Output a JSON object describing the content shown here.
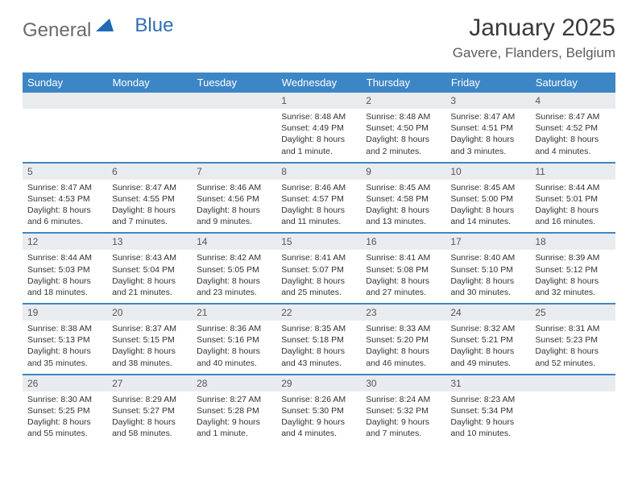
{
  "brand": {
    "general": "General",
    "blue": "Blue"
  },
  "colors": {
    "header_bg": "#3d86c6",
    "header_text": "#ffffff",
    "daynum_bg": "#e9ecef",
    "border": "#3d86c6",
    "text": "#333333",
    "logo_tri": "#1f6bb5"
  },
  "title": {
    "month": "January 2025",
    "location": "Gavere, Flanders, Belgium"
  },
  "weekdays": [
    "Sunday",
    "Monday",
    "Tuesday",
    "Wednesday",
    "Thursday",
    "Friday",
    "Saturday"
  ],
  "weeks": [
    [
      {
        "n": "",
        "sr": "",
        "ss": "",
        "dl": ""
      },
      {
        "n": "",
        "sr": "",
        "ss": "",
        "dl": ""
      },
      {
        "n": "",
        "sr": "",
        "ss": "",
        "dl": ""
      },
      {
        "n": "1",
        "sr": "Sunrise: 8:48 AM",
        "ss": "Sunset: 4:49 PM",
        "dl": "Daylight: 8 hours and 1 minute."
      },
      {
        "n": "2",
        "sr": "Sunrise: 8:48 AM",
        "ss": "Sunset: 4:50 PM",
        "dl": "Daylight: 8 hours and 2 minutes."
      },
      {
        "n": "3",
        "sr": "Sunrise: 8:47 AM",
        "ss": "Sunset: 4:51 PM",
        "dl": "Daylight: 8 hours and 3 minutes."
      },
      {
        "n": "4",
        "sr": "Sunrise: 8:47 AM",
        "ss": "Sunset: 4:52 PM",
        "dl": "Daylight: 8 hours and 4 minutes."
      }
    ],
    [
      {
        "n": "5",
        "sr": "Sunrise: 8:47 AM",
        "ss": "Sunset: 4:53 PM",
        "dl": "Daylight: 8 hours and 6 minutes."
      },
      {
        "n": "6",
        "sr": "Sunrise: 8:47 AM",
        "ss": "Sunset: 4:55 PM",
        "dl": "Daylight: 8 hours and 7 minutes."
      },
      {
        "n": "7",
        "sr": "Sunrise: 8:46 AM",
        "ss": "Sunset: 4:56 PM",
        "dl": "Daylight: 8 hours and 9 minutes."
      },
      {
        "n": "8",
        "sr": "Sunrise: 8:46 AM",
        "ss": "Sunset: 4:57 PM",
        "dl": "Daylight: 8 hours and 11 minutes."
      },
      {
        "n": "9",
        "sr": "Sunrise: 8:45 AM",
        "ss": "Sunset: 4:58 PM",
        "dl": "Daylight: 8 hours and 13 minutes."
      },
      {
        "n": "10",
        "sr": "Sunrise: 8:45 AM",
        "ss": "Sunset: 5:00 PM",
        "dl": "Daylight: 8 hours and 14 minutes."
      },
      {
        "n": "11",
        "sr": "Sunrise: 8:44 AM",
        "ss": "Sunset: 5:01 PM",
        "dl": "Daylight: 8 hours and 16 minutes."
      }
    ],
    [
      {
        "n": "12",
        "sr": "Sunrise: 8:44 AM",
        "ss": "Sunset: 5:03 PM",
        "dl": "Daylight: 8 hours and 18 minutes."
      },
      {
        "n": "13",
        "sr": "Sunrise: 8:43 AM",
        "ss": "Sunset: 5:04 PM",
        "dl": "Daylight: 8 hours and 21 minutes."
      },
      {
        "n": "14",
        "sr": "Sunrise: 8:42 AM",
        "ss": "Sunset: 5:05 PM",
        "dl": "Daylight: 8 hours and 23 minutes."
      },
      {
        "n": "15",
        "sr": "Sunrise: 8:41 AM",
        "ss": "Sunset: 5:07 PM",
        "dl": "Daylight: 8 hours and 25 minutes."
      },
      {
        "n": "16",
        "sr": "Sunrise: 8:41 AM",
        "ss": "Sunset: 5:08 PM",
        "dl": "Daylight: 8 hours and 27 minutes."
      },
      {
        "n": "17",
        "sr": "Sunrise: 8:40 AM",
        "ss": "Sunset: 5:10 PM",
        "dl": "Daylight: 8 hours and 30 minutes."
      },
      {
        "n": "18",
        "sr": "Sunrise: 8:39 AM",
        "ss": "Sunset: 5:12 PM",
        "dl": "Daylight: 8 hours and 32 minutes."
      }
    ],
    [
      {
        "n": "19",
        "sr": "Sunrise: 8:38 AM",
        "ss": "Sunset: 5:13 PM",
        "dl": "Daylight: 8 hours and 35 minutes."
      },
      {
        "n": "20",
        "sr": "Sunrise: 8:37 AM",
        "ss": "Sunset: 5:15 PM",
        "dl": "Daylight: 8 hours and 38 minutes."
      },
      {
        "n": "21",
        "sr": "Sunrise: 8:36 AM",
        "ss": "Sunset: 5:16 PM",
        "dl": "Daylight: 8 hours and 40 minutes."
      },
      {
        "n": "22",
        "sr": "Sunrise: 8:35 AM",
        "ss": "Sunset: 5:18 PM",
        "dl": "Daylight: 8 hours and 43 minutes."
      },
      {
        "n": "23",
        "sr": "Sunrise: 8:33 AM",
        "ss": "Sunset: 5:20 PM",
        "dl": "Daylight: 8 hours and 46 minutes."
      },
      {
        "n": "24",
        "sr": "Sunrise: 8:32 AM",
        "ss": "Sunset: 5:21 PM",
        "dl": "Daylight: 8 hours and 49 minutes."
      },
      {
        "n": "25",
        "sr": "Sunrise: 8:31 AM",
        "ss": "Sunset: 5:23 PM",
        "dl": "Daylight: 8 hours and 52 minutes."
      }
    ],
    [
      {
        "n": "26",
        "sr": "Sunrise: 8:30 AM",
        "ss": "Sunset: 5:25 PM",
        "dl": "Daylight: 8 hours and 55 minutes."
      },
      {
        "n": "27",
        "sr": "Sunrise: 8:29 AM",
        "ss": "Sunset: 5:27 PM",
        "dl": "Daylight: 8 hours and 58 minutes."
      },
      {
        "n": "28",
        "sr": "Sunrise: 8:27 AM",
        "ss": "Sunset: 5:28 PM",
        "dl": "Daylight: 9 hours and 1 minute."
      },
      {
        "n": "29",
        "sr": "Sunrise: 8:26 AM",
        "ss": "Sunset: 5:30 PM",
        "dl": "Daylight: 9 hours and 4 minutes."
      },
      {
        "n": "30",
        "sr": "Sunrise: 8:24 AM",
        "ss": "Sunset: 5:32 PM",
        "dl": "Daylight: 9 hours and 7 minutes."
      },
      {
        "n": "31",
        "sr": "Sunrise: 8:23 AM",
        "ss": "Sunset: 5:34 PM",
        "dl": "Daylight: 9 hours and 10 minutes."
      },
      {
        "n": "",
        "sr": "",
        "ss": "",
        "dl": ""
      }
    ]
  ]
}
